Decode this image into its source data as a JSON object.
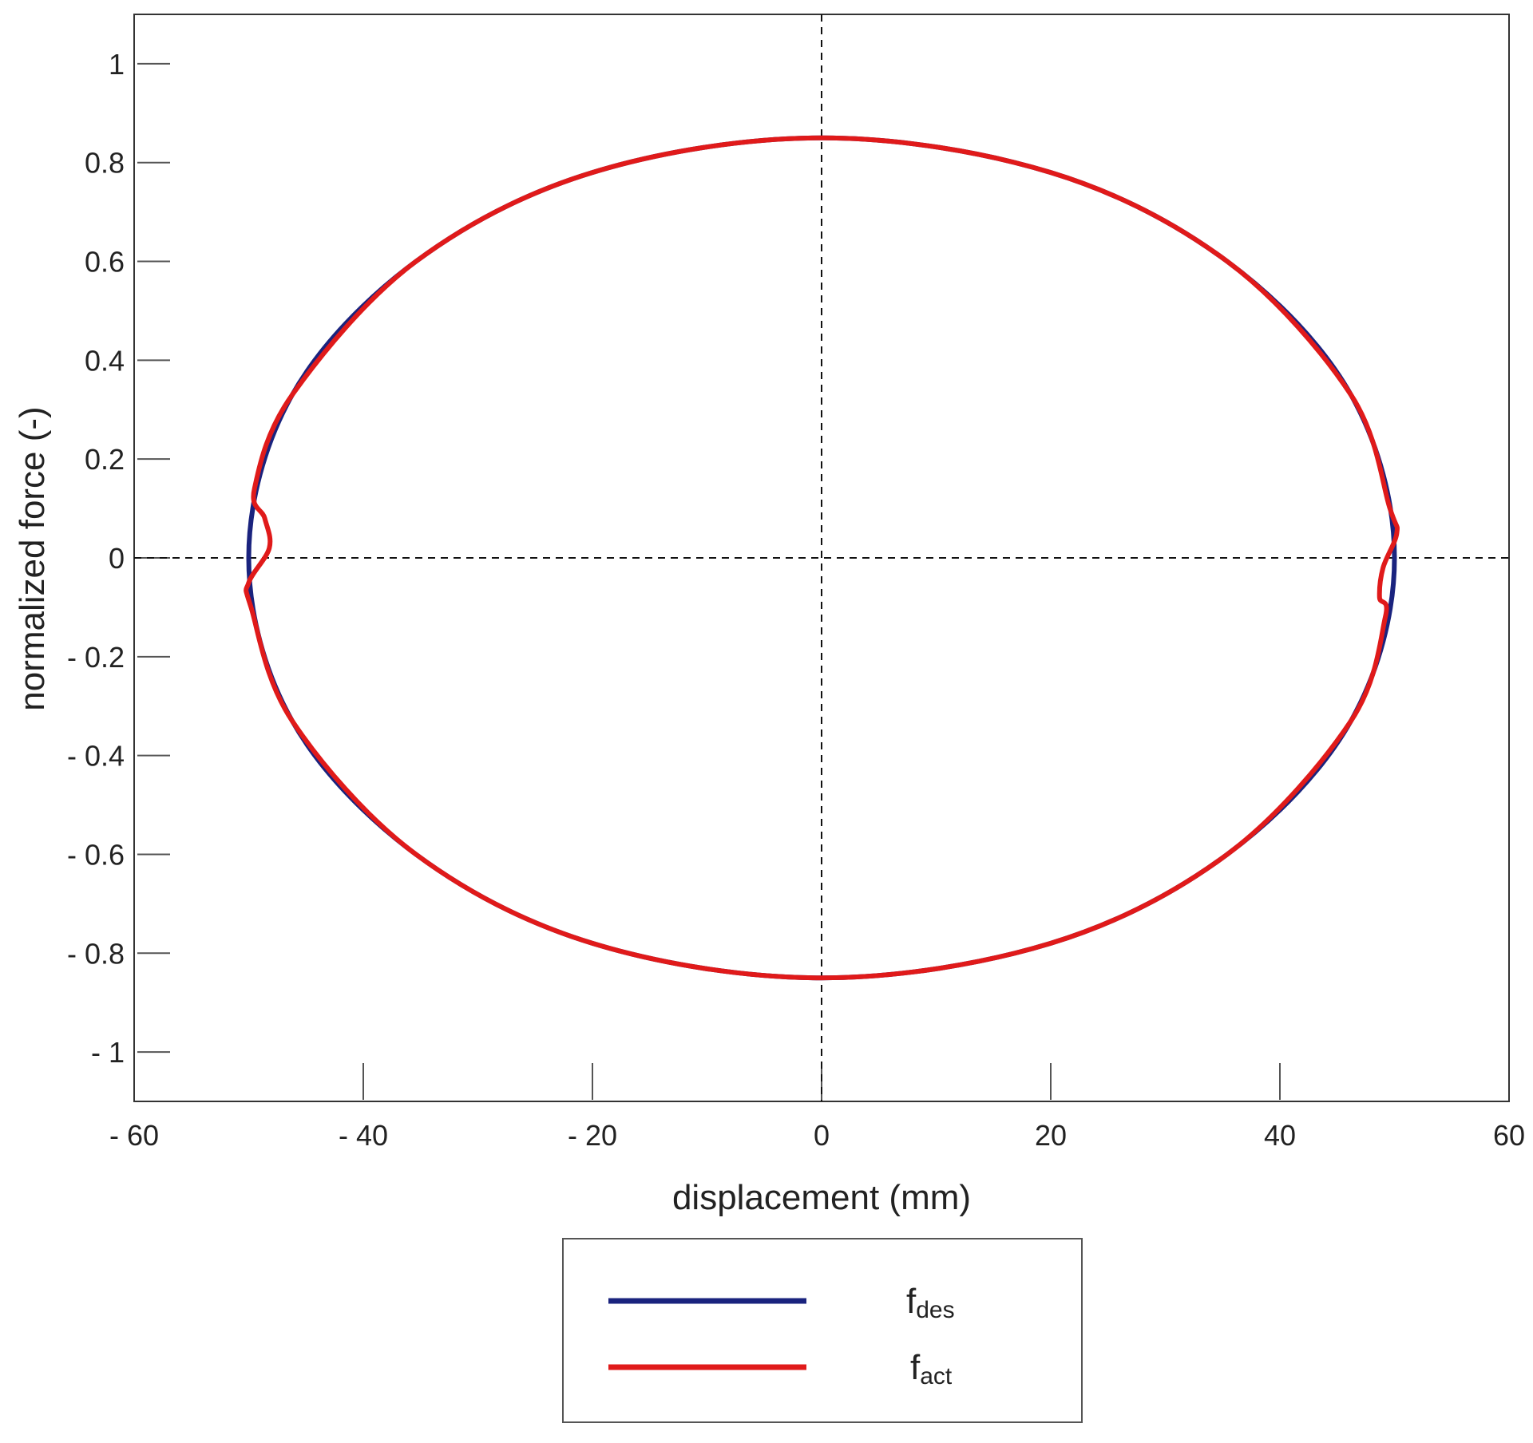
{
  "chart_data": {
    "type": "line",
    "xlabel": "displacement (mm)",
    "ylabel": "normalized force (-)",
    "xlim": [
      -60,
      60
    ],
    "ylim": [
      -1.1,
      1.1
    ],
    "x_ticks": [
      -60,
      -40,
      -20,
      0,
      20,
      40,
      60
    ],
    "x_tick_labels": [
      "- 60",
      "- 40",
      "- 20",
      "0",
      "20",
      "40",
      "60"
    ],
    "y_ticks": [
      1,
      0.8,
      0.6,
      0.4,
      0.2,
      0,
      -0.2,
      -0.4,
      -0.6,
      -0.8,
      -1
    ],
    "y_tick_labels": [
      "1",
      "0.8",
      "0.6",
      "0.4",
      "0.2",
      "0",
      "- 0.2",
      "- 0.4",
      "- 0.6",
      "- 0.8",
      "- 1"
    ],
    "reference_lines": {
      "x": 0,
      "y": 0,
      "style": "dashed"
    },
    "grid": false,
    "legend_position": "bottom-outside",
    "series": [
      {
        "name": "f",
        "subscript": "des",
        "color": "#1a237e",
        "x": [
          0,
          20,
          35.4,
          46.2,
          50,
          46.2,
          35.4,
          20,
          0,
          -20,
          -35.4,
          -46.2,
          -50,
          -46.2,
          -35.4,
          -20,
          0
        ],
        "y": [
          0.85,
          0.78,
          0.6,
          0.33,
          0,
          -0.33,
          -0.6,
          -0.78,
          -0.85,
          -0.78,
          -0.6,
          -0.33,
          0,
          0.33,
          0.6,
          0.78,
          0.85
        ]
      },
      {
        "name": "f",
        "subscript": "act",
        "color": "#e01a1a",
        "x": [
          0,
          20,
          35.4,
          46.2,
          49.6,
          50.2,
          49.0,
          48.7,
          49.2,
          46.2,
          35.4,
          20,
          0,
          -20,
          -35.4,
          -46.2,
          -49.8,
          -50,
          -48.2,
          -48.6,
          -49.5,
          -46.2,
          -35.4,
          -20,
          0
        ],
        "y": [
          0.85,
          0.78,
          0.6,
          0.33,
          0.1,
          0.05,
          -0.02,
          -0.08,
          -0.12,
          -0.33,
          -0.6,
          -0.78,
          -0.85,
          -0.78,
          -0.6,
          -0.33,
          -0.1,
          -0.05,
          0.02,
          0.08,
          0.14,
          0.33,
          0.6,
          0.78,
          0.85
        ]
      }
    ]
  }
}
